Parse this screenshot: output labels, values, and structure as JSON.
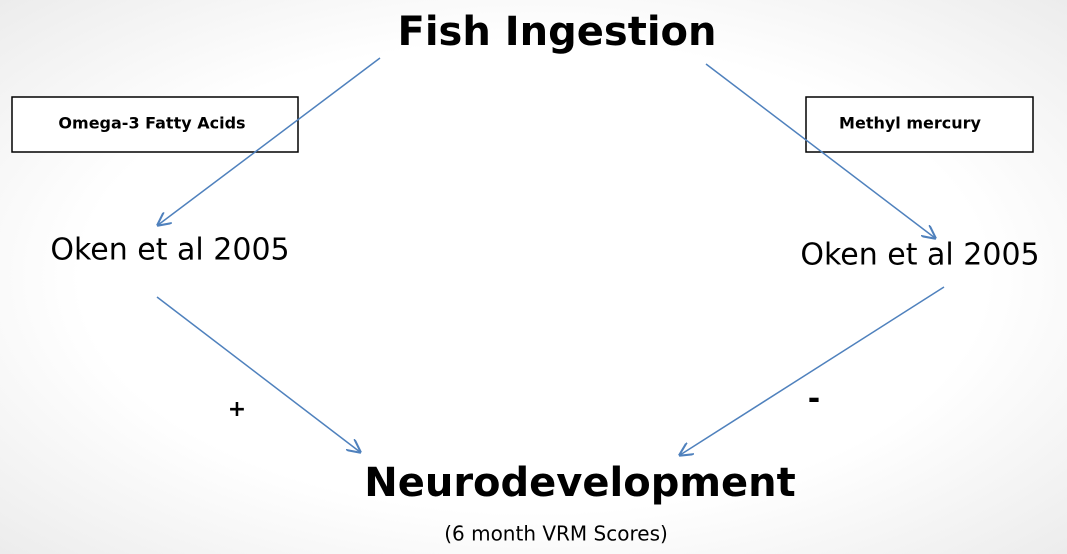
{
  "title": "Fish Ingestion",
  "nodes": [
    {
      "label": "Omega-3 Fatty Acids"
    },
    {
      "label": "Methyl mercury"
    },
    {
      "label": "Oken et al 2005"
    },
    {
      "label": "Oken et al 2005"
    },
    {
      "label": "Neurodevelopment"
    },
    {
      "label": "(6 month VRM Scores)"
    }
  ],
  "signs": [
    "+",
    "-"
  ]
}
